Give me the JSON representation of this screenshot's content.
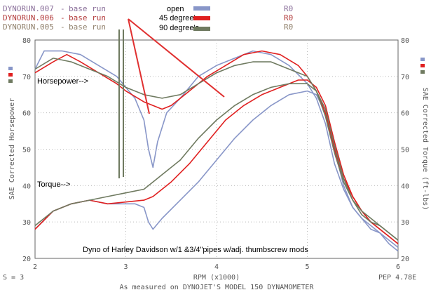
{
  "header": {
    "runs": [
      {
        "name": "DYNORUN.007",
        "desc": "base run",
        "code": "R0",
        "color": "#8a6f9a"
      },
      {
        "name": "DYNORUN.006",
        "desc": "base run",
        "code": "R0",
        "color": "#b33a3a"
      },
      {
        "name": "DYNORUN.005",
        "desc": "base run",
        "code": "R0",
        "color": "#8f7f6a"
      }
    ]
  },
  "legend": {
    "placement": "top-center",
    "entries": [
      {
        "label": "open",
        "color": "#8896c8"
      },
      {
        "label": "45 degree's",
        "color": "#e02020"
      },
      {
        "label": "90 degree's",
        "color": "#6f7a60"
      }
    ]
  },
  "footer": {
    "smoothing": "S = 3",
    "caption": "As measured on DYNOJET'S MODEL 150 DYNAMOMETER",
    "pep": "PEP 4.78E"
  },
  "annotation_note": "Dyno of Harley Davidson w/1 &3/4\"pipes w/adj. thumbscrew mods",
  "chart_data": {
    "type": "line",
    "grid": true,
    "xlabel": "RPM (x1000)",
    "ylabel_left": "SAE Corrected Horsepower",
    "ylabel_right": "SAE Corrected Torque (ft-lbs)",
    "xlim": [
      2,
      6
    ],
    "ylim_left": [
      20,
      80
    ],
    "ylim_right": [
      20,
      80
    ],
    "xticks": [
      "2",
      "3",
      "4",
      "5",
      "6"
    ],
    "yticks_left": [
      "20",
      "30",
      "40",
      "50",
      "60",
      "70",
      "80"
    ],
    "yticks_right": [
      "20",
      "30",
      "40",
      "50",
      "60",
      "70",
      "80"
    ],
    "annotations": [
      "Horsepower-->",
      "Torque-->",
      "Dyno of Harley Davidson w/1 &3/4\"pipes w/adj. thumbscrew mods"
    ],
    "series": [
      {
        "name": "open",
        "color": "#8896c8",
        "horsepower": [
          [
            2.0,
            72
          ],
          [
            2.1,
            77
          ],
          [
            2.3,
            77
          ],
          [
            2.5,
            76
          ],
          [
            2.7,
            73
          ],
          [
            2.9,
            70
          ],
          [
            3.0,
            67
          ],
          [
            3.1,
            64
          ],
          [
            3.2,
            58
          ],
          [
            3.25,
            50
          ],
          [
            3.3,
            45
          ],
          [
            3.35,
            52
          ],
          [
            3.45,
            60
          ],
          [
            3.6,
            64
          ],
          [
            3.8,
            70
          ],
          [
            4.0,
            73
          ],
          [
            4.2,
            75
          ],
          [
            4.4,
            77
          ],
          [
            4.6,
            76
          ],
          [
            4.8,
            73
          ],
          [
            5.0,
            68
          ],
          [
            5.1,
            64
          ],
          [
            5.2,
            57
          ],
          [
            5.3,
            46
          ],
          [
            5.4,
            39
          ],
          [
            5.5,
            34
          ],
          [
            5.6,
            31
          ],
          [
            5.7,
            28
          ],
          [
            5.8,
            27
          ],
          [
            5.9,
            25
          ],
          [
            6.0,
            23
          ]
        ],
        "torque": [
          [
            2.0,
            28
          ],
          [
            2.2,
            33
          ],
          [
            2.4,
            35
          ],
          [
            2.6,
            36
          ],
          [
            2.8,
            35
          ],
          [
            3.0,
            35
          ],
          [
            3.1,
            35
          ],
          [
            3.2,
            34
          ],
          [
            3.25,
            30
          ],
          [
            3.3,
            28
          ],
          [
            3.4,
            31
          ],
          [
            3.6,
            36
          ],
          [
            3.8,
            41
          ],
          [
            4.0,
            47
          ],
          [
            4.2,
            53
          ],
          [
            4.4,
            58
          ],
          [
            4.6,
            62
          ],
          [
            4.8,
            65
          ],
          [
            5.0,
            66
          ],
          [
            5.1,
            65
          ],
          [
            5.2,
            60
          ],
          [
            5.3,
            50
          ],
          [
            5.4,
            40
          ],
          [
            5.5,
            34
          ],
          [
            5.6,
            31
          ],
          [
            5.7,
            29
          ],
          [
            5.8,
            27
          ],
          [
            5.9,
            24
          ],
          [
            6.0,
            22
          ]
        ]
      },
      {
        "name": "45 degree's",
        "color": "#e02020",
        "horsepower": [
          [
            2.0,
            71
          ],
          [
            2.2,
            74
          ],
          [
            2.35,
            76
          ],
          [
            2.5,
            74
          ],
          [
            2.7,
            71
          ],
          [
            2.9,
            68
          ],
          [
            3.0,
            66
          ],
          [
            3.2,
            63
          ],
          [
            3.3,
            62
          ],
          [
            3.4,
            61
          ],
          [
            3.5,
            62
          ],
          [
            3.7,
            66
          ],
          [
            3.9,
            70
          ],
          [
            4.1,
            73
          ],
          [
            4.3,
            76
          ],
          [
            4.5,
            77
          ],
          [
            4.7,
            76
          ],
          [
            4.9,
            73
          ],
          [
            5.0,
            70
          ],
          [
            5.1,
            66
          ],
          [
            5.2,
            60
          ],
          [
            5.3,
            50
          ],
          [
            5.4,
            42
          ],
          [
            5.5,
            37
          ],
          [
            5.6,
            33
          ],
          [
            5.7,
            30
          ],
          [
            5.8,
            28
          ],
          [
            5.9,
            26
          ],
          [
            6.0,
            24
          ]
        ],
        "torque": [
          [
            2.0,
            28
          ],
          [
            2.2,
            33
          ],
          [
            2.4,
            35
          ],
          [
            2.6,
            36
          ],
          [
            2.8,
            35
          ],
          [
            3.0,
            35.5
          ],
          [
            3.2,
            36
          ],
          [
            3.3,
            37
          ],
          [
            3.5,
            41
          ],
          [
            3.7,
            46
          ],
          [
            3.9,
            52
          ],
          [
            4.1,
            58
          ],
          [
            4.3,
            62
          ],
          [
            4.5,
            65
          ],
          [
            4.7,
            67
          ],
          [
            4.9,
            69
          ],
          [
            5.0,
            69
          ],
          [
            5.1,
            67
          ],
          [
            5.2,
            62
          ],
          [
            5.3,
            52
          ],
          [
            5.4,
            43
          ],
          [
            5.5,
            37
          ],
          [
            5.6,
            33
          ],
          [
            5.7,
            30
          ],
          [
            5.8,
            28
          ],
          [
            5.9,
            26
          ],
          [
            6.0,
            24
          ]
        ]
      },
      {
        "name": "90 degree's",
        "color": "#6f7a60",
        "horsepower": [
          [
            2.0,
            72
          ],
          [
            2.2,
            75
          ],
          [
            2.4,
            74
          ],
          [
            2.6,
            72
          ],
          [
            2.8,
            70
          ],
          [
            3.0,
            67
          ],
          [
            3.2,
            65
          ],
          [
            3.4,
            64
          ],
          [
            3.6,
            65
          ],
          [
            3.8,
            68
          ],
          [
            4.0,
            71
          ],
          [
            4.2,
            73
          ],
          [
            4.4,
            74
          ],
          [
            4.6,
            74
          ],
          [
            4.8,
            72
          ],
          [
            5.0,
            70
          ],
          [
            5.1,
            66
          ],
          [
            5.2,
            59
          ],
          [
            5.3,
            49
          ],
          [
            5.4,
            41
          ],
          [
            5.5,
            36
          ],
          [
            5.6,
            32
          ],
          [
            5.7,
            30
          ],
          [
            5.8,
            29
          ],
          [
            5.9,
            27
          ],
          [
            6.0,
            25
          ]
        ],
        "torque": [
          [
            2.0,
            29
          ],
          [
            2.2,
            33
          ],
          [
            2.4,
            35
          ],
          [
            2.6,
            36
          ],
          [
            2.8,
            37
          ],
          [
            3.0,
            38
          ],
          [
            3.2,
            39
          ],
          [
            3.4,
            43
          ],
          [
            3.6,
            47
          ],
          [
            3.8,
            53
          ],
          [
            4.0,
            58
          ],
          [
            4.2,
            62
          ],
          [
            4.4,
            65
          ],
          [
            4.6,
            67
          ],
          [
            4.8,
            68
          ],
          [
            5.0,
            68
          ],
          [
            5.1,
            66
          ],
          [
            5.2,
            61
          ],
          [
            5.3,
            51
          ],
          [
            5.4,
            42
          ],
          [
            5.5,
            36
          ],
          [
            5.6,
            33
          ],
          [
            5.7,
            31
          ],
          [
            5.8,
            29
          ],
          [
            5.9,
            27
          ],
          [
            6.0,
            25
          ]
        ]
      }
    ]
  }
}
